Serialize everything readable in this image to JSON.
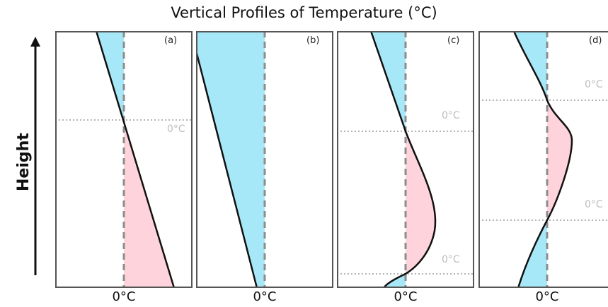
{
  "figure": {
    "title": "Vertical Profiles of Temperature (°C)",
    "y_axis_label": "Height",
    "colors": {
      "cold_fill": "#a7e8f8",
      "warm_fill": "#ffd3dc",
      "profile_line": "#111111",
      "zero_line": "#8c8c8c",
      "crossing_line": "#b4b4b4",
      "frame": "#555555"
    }
  },
  "panels": [
    {
      "id": "a",
      "label": "(a)",
      "x_axis_label": "0°C",
      "crossing_labels": [
        "0°C"
      ]
    },
    {
      "id": "b",
      "label": "(b)",
      "x_axis_label": "0°C",
      "crossing_labels": []
    },
    {
      "id": "c",
      "label": "(c)",
      "x_axis_label": "0°C",
      "crossing_labels": [
        "0°C",
        "0°C"
      ]
    },
    {
      "id": "d",
      "label": "(d)",
      "x_axis_label": "0°C",
      "crossing_labels": [
        "0°C",
        "0°C"
      ]
    }
  ]
}
